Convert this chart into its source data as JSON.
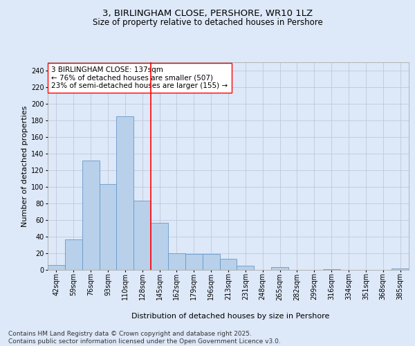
{
  "title_line1": "3, BIRLINGHAM CLOSE, PERSHORE, WR10 1LZ",
  "title_line2": "Size of property relative to detached houses in Pershore",
  "xlabel": "Distribution of detached houses by size in Pershore",
  "ylabel": "Number of detached properties",
  "footer": "Contains HM Land Registry data © Crown copyright and database right 2025.\nContains public sector information licensed under the Open Government Licence v3.0.",
  "annotation_line1": "3 BIRLINGHAM CLOSE: 137sqm",
  "annotation_line2": "← 76% of detached houses are smaller (507)",
  "annotation_line3": "23% of semi-detached houses are larger (155) →",
  "bar_labels": [
    "42sqm",
    "59sqm",
    "76sqm",
    "93sqm",
    "110sqm",
    "128sqm",
    "145sqm",
    "162sqm",
    "179sqm",
    "196sqm",
    "213sqm",
    "231sqm",
    "248sqm",
    "265sqm",
    "282sqm",
    "299sqm",
    "316sqm",
    "334sqm",
    "351sqm",
    "368sqm",
    "385sqm"
  ],
  "bar_values": [
    6,
    37,
    132,
    103,
    185,
    83,
    57,
    20,
    19,
    19,
    13,
    5,
    0,
    3,
    0,
    0,
    1,
    0,
    0,
    0,
    2
  ],
  "bar_color": "#b8d0ea",
  "bar_edge_color": "#6699cc",
  "red_line_x": 5.5,
  "ylim": [
    0,
    250
  ],
  "yticks": [
    0,
    20,
    40,
    60,
    80,
    100,
    120,
    140,
    160,
    180,
    200,
    220,
    240
  ],
  "background_color": "#dde8f8",
  "plot_bg_color": "#dde8f8",
  "grid_color": "#c0c8d8",
  "title_fontsize": 9.5,
  "subtitle_fontsize": 8.5,
  "axis_label_fontsize": 8,
  "tick_fontsize": 7,
  "footer_fontsize": 6.5,
  "annotation_fontsize": 7.5
}
